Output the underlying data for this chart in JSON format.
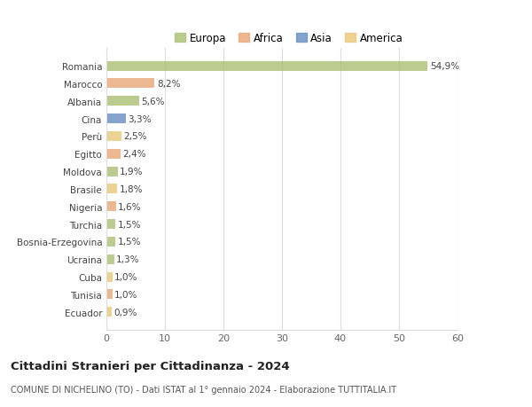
{
  "categories": [
    "Romania",
    "Marocco",
    "Albania",
    "Cina",
    "Perù",
    "Egitto",
    "Moldova",
    "Brasile",
    "Nigeria",
    "Turchia",
    "Bosnia-Erzegovina",
    "Ucraina",
    "Cuba",
    "Tunisia",
    "Ecuador"
  ],
  "values": [
    54.9,
    8.2,
    5.6,
    3.3,
    2.5,
    2.4,
    1.9,
    1.8,
    1.6,
    1.5,
    1.5,
    1.3,
    1.0,
    1.0,
    0.9
  ],
  "labels": [
    "54,9%",
    "8,2%",
    "5,6%",
    "3,3%",
    "2,5%",
    "2,4%",
    "1,9%",
    "1,8%",
    "1,6%",
    "1,5%",
    "1,5%",
    "1,3%",
    "1,0%",
    "1,0%",
    "0,9%"
  ],
  "colors": [
    "#adc178",
    "#e8a87c",
    "#adc178",
    "#6a8fc0",
    "#e8c97c",
    "#e8a87c",
    "#adc178",
    "#e8c97c",
    "#e8a87c",
    "#adc178",
    "#adc178",
    "#adc178",
    "#e8c97c",
    "#e8a87c",
    "#e8c97c"
  ],
  "legend_labels": [
    "Europa",
    "Africa",
    "Asia",
    "America"
  ],
  "legend_colors": [
    "#adc178",
    "#e8a87c",
    "#6a8fc0",
    "#e8c97c"
  ],
  "title": "Cittadini Stranieri per Cittadinanza - 2024",
  "subtitle": "COMUNE DI NICHELINO (TO) - Dati ISTAT al 1° gennaio 2024 - Elaborazione TUTTITALIA.IT",
  "xlim": [
    0,
    60
  ],
  "xticks": [
    0,
    10,
    20,
    30,
    40,
    50,
    60
  ],
  "bg_color": "#ffffff",
  "grid_color": "#dddddd",
  "bar_height": 0.55,
  "bar_alpha": 0.82,
  "label_fontsize": 7.5,
  "ytick_fontsize": 7.5,
  "xtick_fontsize": 8,
  "title_fontsize": 9.5,
  "subtitle_fontsize": 7,
  "legend_fontsize": 8.5
}
